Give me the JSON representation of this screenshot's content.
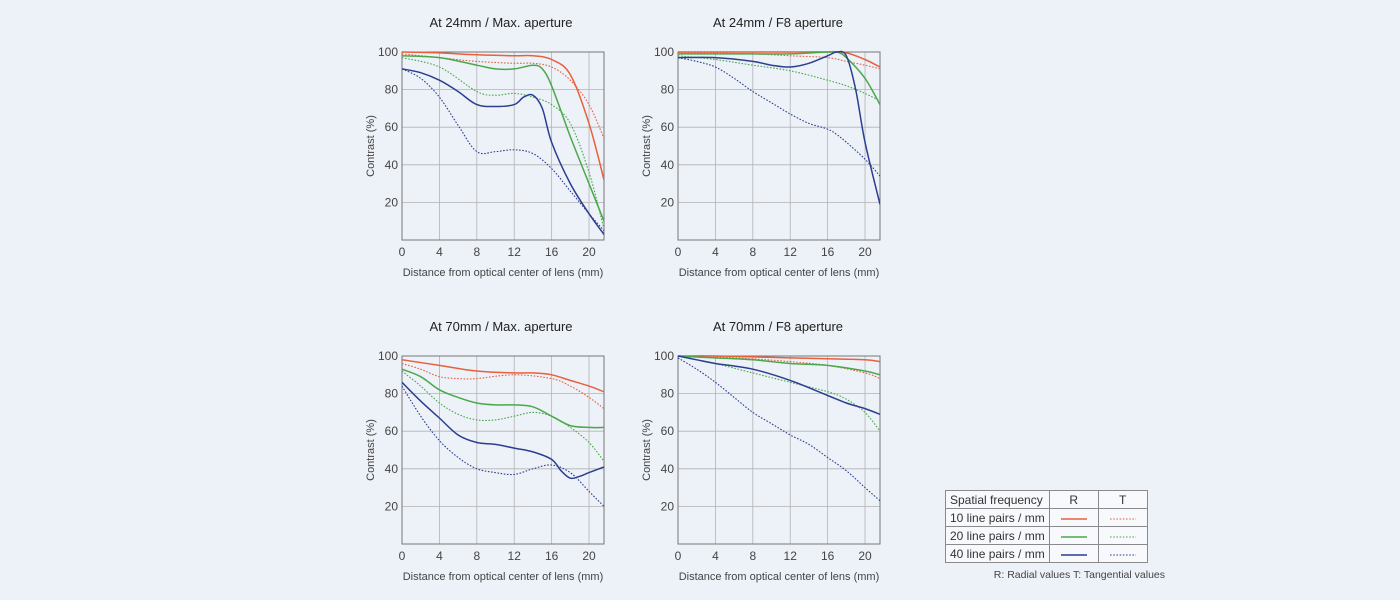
{
  "charts": [
    {
      "id": "c1",
      "title": "At 24mm / Max. aperture",
      "xlabel": "Distance from optical center of lens (mm)",
      "ylabel": "Contrast (%)"
    },
    {
      "id": "c2",
      "title": "At 24mm / F8 aperture",
      "xlabel": "Distance from optical center of lens (mm)",
      "ylabel": "Contrast (%)"
    },
    {
      "id": "c3",
      "title": "At 70mm / Max. aperture",
      "xlabel": "Distance from optical center of lens (mm)",
      "ylabel": "Contrast (%)"
    },
    {
      "id": "c4",
      "title": "At 70mm / F8 aperture",
      "xlabel": "Distance from optical center of lens (mm)",
      "ylabel": "Contrast (%)"
    }
  ],
  "legend": {
    "header": "Spatial frequency",
    "col_r": "R",
    "col_t": "T",
    "rows": [
      "10 line pairs / mm",
      "20 line pairs / mm",
      "40 line pairs / mm"
    ],
    "note": "R: Radial values  T: Tangential values"
  },
  "colors": {
    "lp10": "#e8603c",
    "lp20": "#4aa84a",
    "lp40": "#2c3f8f",
    "grid": "#b3b3b3",
    "axis": "#777777"
  },
  "chart_data": [
    {
      "type": "line",
      "title": "At 24mm / Max. aperture",
      "xlabel": "Distance from optical center of lens (mm)",
      "ylabel": "Contrast (%)",
      "xlim": [
        0,
        21.6
      ],
      "ylim": [
        0,
        100
      ],
      "xticks": [
        0,
        4,
        8,
        12,
        16,
        20
      ],
      "yticks": [
        20,
        40,
        60,
        80,
        100
      ],
      "grid": true,
      "series": [
        {
          "freq": "10",
          "kind": "R",
          "x": [
            0,
            4,
            8,
            12,
            14,
            16,
            18,
            20,
            21.6
          ],
          "y": [
            100,
            99.5,
            98.5,
            98,
            98,
            96,
            88,
            62,
            32
          ]
        },
        {
          "freq": "10",
          "kind": "T",
          "x": [
            0,
            4,
            8,
            12,
            14,
            16,
            18,
            20,
            21.6
          ],
          "y": [
            99,
            97,
            95,
            94,
            94,
            92,
            85,
            72,
            54
          ]
        },
        {
          "freq": "20",
          "kind": "R",
          "x": [
            0,
            4,
            8,
            10,
            12,
            14,
            15,
            16,
            18,
            20,
            21.6
          ],
          "y": [
            98,
            97,
            93,
            91,
            91,
            93,
            91,
            82,
            55,
            30,
            10
          ]
        },
        {
          "freq": "20",
          "kind": "T",
          "x": [
            0,
            4,
            8,
            10,
            12,
            14,
            16,
            18,
            20,
            21.6
          ],
          "y": [
            97,
            92,
            79,
            77,
            78,
            76,
            72,
            62,
            36,
            6
          ]
        },
        {
          "freq": "40",
          "kind": "R",
          "x": [
            0,
            2,
            4,
            6,
            8,
            10,
            12,
            13,
            14,
            15,
            16,
            18,
            20,
            21.6
          ],
          "y": [
            91,
            89,
            85,
            79,
            72,
            71,
            72,
            76,
            77,
            70,
            52,
            30,
            14,
            3
          ]
        },
        {
          "freq": "40",
          "kind": "T",
          "x": [
            0,
            2,
            4,
            6,
            8,
            10,
            12,
            14,
            16,
            18,
            20,
            21.6
          ],
          "y": [
            91,
            86,
            76,
            61,
            47,
            47,
            48,
            46,
            38,
            26,
            14,
            5
          ]
        }
      ]
    },
    {
      "type": "line",
      "title": "At 24mm / F8 aperture",
      "xlabel": "Distance from optical center of lens (mm)",
      "ylabel": "Contrast (%)",
      "xlim": [
        0,
        21.6
      ],
      "ylim": [
        0,
        100
      ],
      "xticks": [
        0,
        4,
        8,
        12,
        16,
        20
      ],
      "yticks": [
        20,
        40,
        60,
        80,
        100
      ],
      "grid": true,
      "series": [
        {
          "freq": "10",
          "kind": "R",
          "x": [
            0,
            4,
            8,
            12,
            16,
            18,
            20,
            21.6
          ],
          "y": [
            100,
            100,
            100,
            100,
            100,
            99.5,
            96,
            92
          ]
        },
        {
          "freq": "10",
          "kind": "T",
          "x": [
            0,
            4,
            8,
            12,
            16,
            18,
            20,
            21.6
          ],
          "y": [
            99.5,
            99.5,
            99,
            98,
            97,
            95,
            93,
            91
          ]
        },
        {
          "freq": "20",
          "kind": "R",
          "x": [
            0,
            4,
            8,
            12,
            16,
            17,
            18,
            20,
            21.6
          ],
          "y": [
            99,
            99,
            99,
            99,
            100,
            100,
            97,
            86,
            72
          ]
        },
        {
          "freq": "20",
          "kind": "T",
          "x": [
            0,
            4,
            8,
            12,
            16,
            18,
            20,
            21.6
          ],
          "y": [
            98,
            96,
            93,
            90,
            85,
            82,
            78,
            74
          ]
        },
        {
          "freq": "40",
          "kind": "R",
          "x": [
            0,
            4,
            8,
            10,
            12,
            14,
            16,
            17,
            18,
            19,
            20,
            21.6
          ],
          "y": [
            97,
            97,
            95,
            93,
            92,
            94,
            98,
            100,
            98,
            80,
            52,
            19
          ]
        },
        {
          "freq": "40",
          "kind": "T",
          "x": [
            0,
            2,
            4,
            6,
            8,
            10,
            12,
            14,
            16,
            17,
            18,
            20,
            21.6
          ],
          "y": [
            97,
            95,
            92,
            86,
            79,
            73,
            67,
            62,
            59,
            56,
            52,
            43,
            34
          ]
        }
      ]
    },
    {
      "type": "line",
      "title": "At 70mm / Max. aperture",
      "xlabel": "Distance from optical center of lens (mm)",
      "ylabel": "Contrast (%)",
      "xlim": [
        0,
        21.6
      ],
      "ylim": [
        0,
        100
      ],
      "xticks": [
        0,
        4,
        8,
        12,
        16,
        20
      ],
      "yticks": [
        20,
        40,
        60,
        80,
        100
      ],
      "grid": true,
      "series": [
        {
          "freq": "10",
          "kind": "R",
          "x": [
            0,
            4,
            8,
            12,
            14,
            16,
            18,
            20,
            21.6
          ],
          "y": [
            98,
            95,
            92,
            91,
            91,
            90,
            87,
            84,
            81
          ]
        },
        {
          "freq": "10",
          "kind": "T",
          "x": [
            0,
            2,
            4,
            6,
            8,
            12,
            16,
            18,
            20,
            21.6
          ],
          "y": [
            96,
            93,
            89,
            88,
            88,
            90,
            88,
            84,
            78,
            72
          ]
        },
        {
          "freq": "20",
          "kind": "R",
          "x": [
            0,
            2,
            4,
            6,
            8,
            10,
            12,
            14,
            16,
            18,
            20,
            21.6
          ],
          "y": [
            93,
            89,
            82,
            78,
            75,
            74,
            74,
            73,
            68,
            63,
            62,
            62
          ]
        },
        {
          "freq": "20",
          "kind": "T",
          "x": [
            0,
            2,
            4,
            6,
            8,
            10,
            12,
            14,
            16,
            18,
            20,
            21.6
          ],
          "y": [
            92,
            84,
            75,
            69,
            66,
            66,
            68,
            70,
            68,
            62,
            54,
            44
          ]
        },
        {
          "freq": "40",
          "kind": "R",
          "x": [
            0,
            2,
            4,
            6,
            8,
            10,
            12,
            14,
            16,
            17,
            18,
            19,
            20,
            21.6
          ],
          "y": [
            86,
            76,
            67,
            58,
            54,
            53,
            51,
            49,
            45,
            39,
            35,
            36,
            38,
            41
          ]
        },
        {
          "freq": "40",
          "kind": "T",
          "x": [
            0,
            2,
            4,
            6,
            8,
            10,
            12,
            14,
            16,
            18,
            20,
            21.6
          ],
          "y": [
            84,
            68,
            55,
            46,
            40,
            38,
            37,
            40,
            42,
            38,
            28,
            20
          ]
        }
      ]
    },
    {
      "type": "line",
      "title": "At 70mm / F8 aperture",
      "xlabel": "Distance from optical center of lens (mm)",
      "ylabel": "Contrast (%)",
      "xlim": [
        0,
        21.6
      ],
      "ylim": [
        0,
        100
      ],
      "xticks": [
        0,
        4,
        8,
        12,
        16,
        20
      ],
      "yticks": [
        20,
        40,
        60,
        80,
        100
      ],
      "grid": true,
      "series": [
        {
          "freq": "10",
          "kind": "R",
          "x": [
            0,
            4,
            8,
            12,
            16,
            20,
            21.6
          ],
          "y": [
            100,
            100,
            99.5,
            99,
            98.5,
            98,
            97
          ]
        },
        {
          "freq": "10",
          "kind": "T",
          "x": [
            0,
            4,
            8,
            12,
            16,
            20,
            21.6
          ],
          "y": [
            100,
            99.5,
            98.5,
            97,
            95,
            91,
            88
          ]
        },
        {
          "freq": "20",
          "kind": "R",
          "x": [
            0,
            4,
            8,
            12,
            16,
            20,
            21.6
          ],
          "y": [
            100,
            99,
            98,
            96,
            95,
            92,
            90
          ]
        },
        {
          "freq": "20",
          "kind": "T",
          "x": [
            0,
            2,
            4,
            8,
            12,
            16,
            18,
            20,
            21.6
          ],
          "y": [
            100,
            98,
            96,
            91,
            86,
            81,
            77,
            70,
            60
          ]
        },
        {
          "freq": "40",
          "kind": "R",
          "x": [
            0,
            2,
            4,
            8,
            12,
            16,
            18,
            20,
            21.6
          ],
          "y": [
            100,
            98,
            96,
            93,
            87,
            79,
            75,
            72,
            69
          ]
        },
        {
          "freq": "40",
          "kind": "T",
          "x": [
            0,
            2,
            4,
            6,
            8,
            10,
            12,
            14,
            16,
            18,
            20,
            21.6
          ],
          "y": [
            99,
            93,
            86,
            78,
            70,
            64,
            58,
            53,
            46,
            39,
            30,
            23
          ]
        }
      ]
    }
  ]
}
